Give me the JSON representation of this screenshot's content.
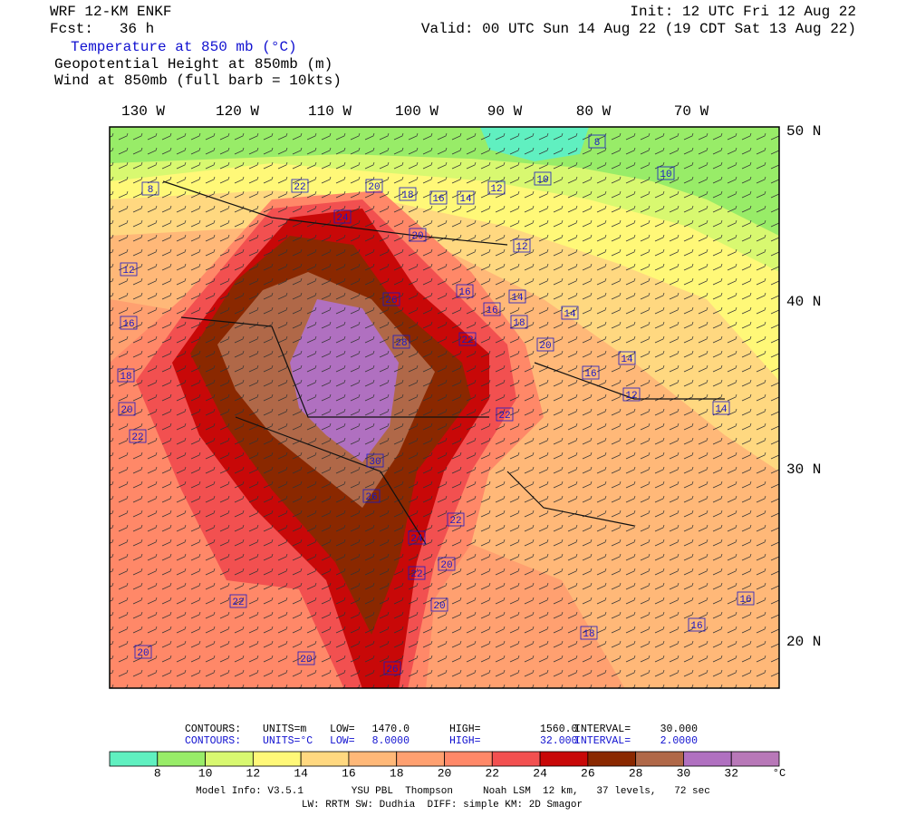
{
  "header": {
    "model": "WRF 12-KM ENKF",
    "forecast": "Fcst:   36 h",
    "init": "Init: 12 UTC Fri 12 Aug 22",
    "valid": "Valid: 00 UTC Sun 14 Aug 22 (19 CDT Sat 13 Aug 22)",
    "fields": [
      "Temperature at 850 mb (°C)",
      "Geopotential Height at 850mb (m)",
      "Wind at 850mb (full barb = 10kts)"
    ]
  },
  "map": {
    "longitudes": [
      "130 W",
      "120 W",
      "110 W",
      "100 W",
      "90 W",
      "80 W",
      "70 W"
    ],
    "latitudes": [
      "50 N",
      "40 N",
      "30 N",
      "20 N"
    ],
    "contour_labels": [
      "8",
      "10",
      "10",
      "12",
      "14",
      "16",
      "18",
      "20",
      "22",
      "24",
      "8",
      "12",
      "16",
      "18",
      "20",
      "22",
      "20",
      "26",
      "28",
      "16",
      "14",
      "16",
      "18",
      "14",
      "22",
      "20",
      "16",
      "14",
      "12",
      "14",
      "22",
      "30",
      "26",
      "22",
      "24",
      "20",
      "22",
      "20",
      "22",
      "18",
      "16",
      "16",
      "20",
      "20",
      "26",
      "12"
    ]
  },
  "contour_info": [
    [
      "CONTOURS:",
      "UNITS=m",
      "LOW=",
      "1470.0",
      "HIGH=",
      "1560.0",
      "INTERVAL=",
      "30.000"
    ],
    [
      "CONTOURS:",
      "UNITS=°C",
      "LOW=",
      "8.0000",
      "HIGH=",
      "32.000",
      "INTERVAL=",
      "2.0000"
    ]
  ],
  "colorbar": {
    "colors": [
      "#60f0c0",
      "#98ec68",
      "#d8f870",
      "#fff878",
      "#ffd880",
      "#ffb878",
      "#ffa070",
      "#ff8868",
      "#f25050",
      "#c80808",
      "#8a2800",
      "#b06848",
      "#b070c0",
      "#b878b8"
    ],
    "ticks": [
      8,
      10,
      12,
      14,
      16,
      18,
      20,
      22,
      24,
      26,
      28,
      30,
      32
    ],
    "unit": "°C"
  },
  "footer": [
    "Model Info: V3.5.1        YSU PBL  Thompson     Noah LSM  12 km,   37 levels,   72 sec",
    "LW: RRTM SW: Dudhia  DIFF: simple KM: 2D Smagor"
  ]
}
